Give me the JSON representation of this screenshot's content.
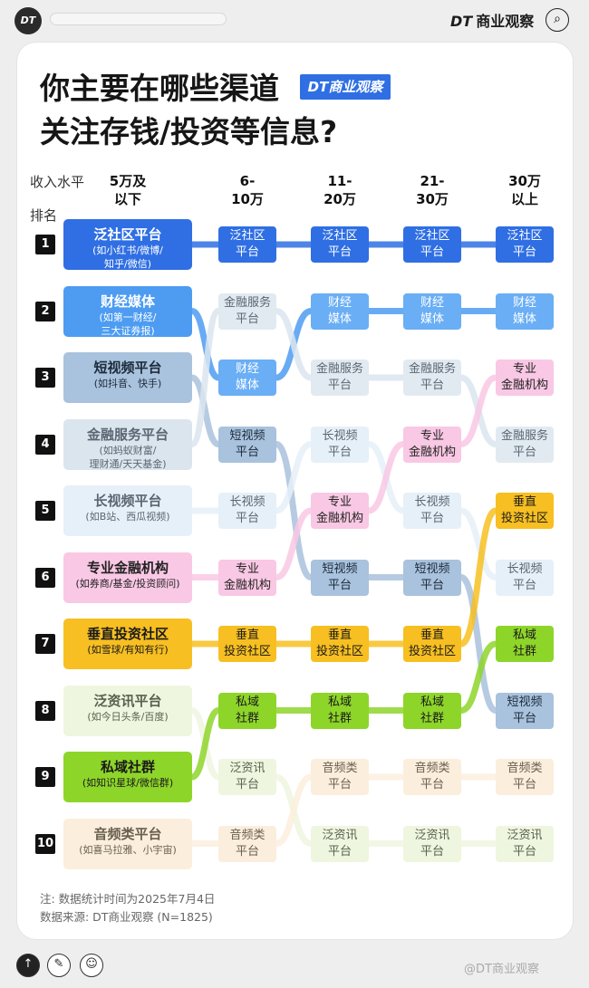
{
  "app": {
    "brand_mark": "DT",
    "brand_name": "商业观察",
    "corner_watermark": "@DT商业观察"
  },
  "title_line1": "你主要在哪些渠道",
  "title_line2": "关注存钱/投资等信息?",
  "title_tag": "DT商业观察",
  "header": {
    "income_label": "收入水平",
    "rank_label": "排名"
  },
  "chart_data": {
    "type": "table",
    "columns": [
      "5万及\n以下",
      "6-\n10万",
      "11-\n20万",
      "21-\n30万",
      "30万\n以上"
    ],
    "channels": [
      {
        "name": "泛社区平台",
        "cell": "泛社区\n平台",
        "sub": "(如小红书/微博/\n知乎/微信)",
        "color": "#2f6fe3",
        "light": "#2f6fe3",
        "text": "#ffffff",
        "lighttext": "#ffffff",
        "ranks": [
          1,
          1,
          1,
          1,
          1
        ]
      },
      {
        "name": "财经媒体",
        "cell": "财经\n媒体",
        "sub": "(如第一财经/\n三大证券报)",
        "color": "#4d9cf2",
        "light": "#6aaef5",
        "text": "#ffffff",
        "lighttext": "#ffffff",
        "ranks": [
          2,
          3,
          2,
          2,
          2
        ]
      },
      {
        "name": "短视频平台",
        "cell": "短视频\n平台",
        "sub": "(如抖音、快手)",
        "color": "#a9c2dd",
        "light": "#a9c2dd",
        "text": "#1d2b3a",
        "lighttext": "#1d2b3a",
        "ranks": [
          3,
          4,
          6,
          6,
          8
        ]
      },
      {
        "name": "金融服务平台",
        "cell": "金融服务\n平台",
        "sub": "(如蚂蚁财富/\n理财通/天天基金)",
        "color": "#dbe5ee",
        "light": "#e2eaf1",
        "text": "#5a6672",
        "lighttext": "#5a6672",
        "ranks": [
          4,
          2,
          3,
          3,
          4
        ]
      },
      {
        "name": "长视频平台",
        "cell": "长视频\n平台",
        "sub": "(如B站、西瓜视频)",
        "color": "#e6f0f8",
        "light": "#e6f0f8",
        "text": "#5a6672",
        "lighttext": "#5a6672",
        "ranks": [
          5,
          5,
          4,
          5,
          6
        ]
      },
      {
        "name": "专业金融机构",
        "cell": "专业\n金融机构",
        "sub": "(如券商/基金/投资顾问)",
        "color": "#f9c8e4",
        "light": "#f9c8e4",
        "text": "#222222",
        "lighttext": "#222222",
        "ranks": [
          6,
          6,
          5,
          4,
          3
        ]
      },
      {
        "name": "垂直投资社区",
        "cell": "垂直\n投资社区",
        "sub": "(如雪球/有知有行)",
        "color": "#f7bf21",
        "light": "#f7bf21",
        "text": "#1a1a1a",
        "lighttext": "#1a1a1a",
        "ranks": [
          7,
          7,
          7,
          7,
          5
        ]
      },
      {
        "name": "泛资讯平台",
        "cell": "泛资讯\n平台",
        "sub": "(如今日头条/百度)",
        "color": "#eef6df",
        "light": "#eef6df",
        "text": "#5a6050",
        "lighttext": "#5a6050",
        "ranks": [
          8,
          9,
          10,
          10,
          10
        ]
      },
      {
        "name": "私域社群",
        "cell": "私域\n社群",
        "sub": "(如知识星球/微信群)",
        "color": "#8ed52a",
        "light": "#8ed52a",
        "text": "#1a1a1a",
        "lighttext": "#1a1a1a",
        "ranks": [
          9,
          8,
          8,
          8,
          7
        ]
      },
      {
        "name": "音频类平台",
        "cell": "音频类\n平台",
        "sub": "(如喜马拉雅、小宇宙)",
        "color": "#fbeedd",
        "light": "#fbeedd",
        "text": "#6a6050",
        "lighttext": "#6a6050",
        "ranks": [
          10,
          10,
          9,
          9,
          9
        ]
      }
    ]
  },
  "footnote_line1": "注: 数据统计时间为2025年7月4日",
  "footnote_line2": "数据来源: DT商业观察 (N=1825)"
}
